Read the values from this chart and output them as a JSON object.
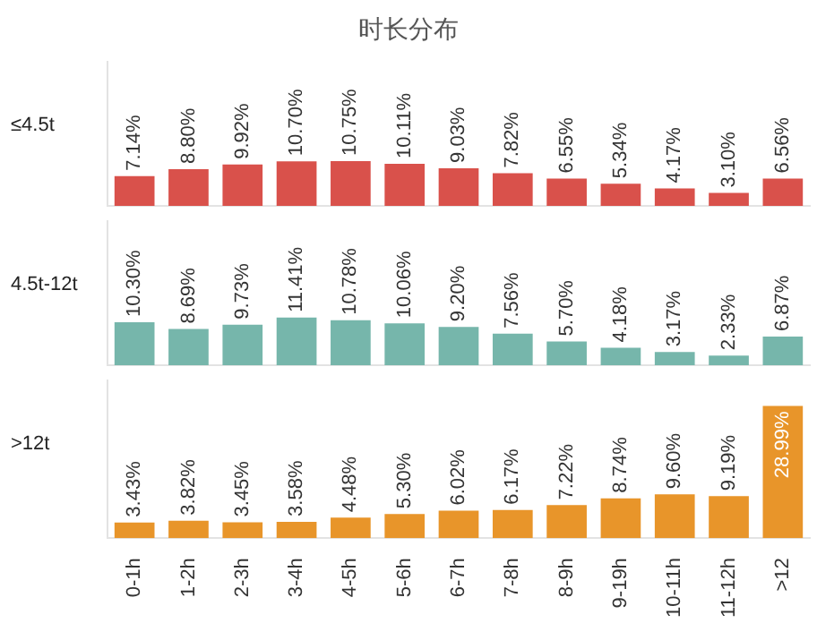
{
  "chart_data": [
    {
      "type": "bar",
      "title": "时长分布",
      "ylabel": "≤4.5t",
      "tick_labels": false,
      "categories": [
        null,
        null,
        null,
        null,
        null,
        null,
        null,
        null,
        null,
        null,
        null,
        null,
        null
      ],
      "series": [
        {
          "color": "#d9514b",
          "values": [
            7.14,
            8.8,
            9.92,
            10.7,
            10.75,
            10.11,
            9.03,
            7.82,
            6.55,
            5.34,
            4.17,
            3.1,
            6.56
          ],
          "value_labels": [
            "7.14%",
            "8.80%",
            "9.92%",
            "10.70%",
            "10.75%",
            "10.11%",
            "9.03%",
            "7.82%",
            "6.55%",
            "5.34%",
            "4.17%",
            "3.10%",
            "6.56%"
          ]
        }
      ]
    },
    {
      "type": "bar",
      "ylabel": "4.5t-12t",
      "tick_labels": false,
      "categories": [
        null,
        null,
        null,
        null,
        null,
        null,
        null,
        null,
        null,
        null,
        null,
        null,
        null
      ],
      "series": [
        {
          "color": "#76b6ab",
          "values": [
            10.3,
            8.69,
            9.73,
            11.41,
            10.78,
            10.06,
            9.2,
            7.56,
            5.7,
            4.18,
            3.17,
            2.33,
            6.87
          ],
          "value_labels": [
            "10.30%",
            "8.69%",
            "9.73%",
            "11.41%",
            "10.78%",
            "10.06%",
            "9.20%",
            "7.56%",
            "5.70%",
            "4.18%",
            "3.17%",
            "2.33%",
            "6.87%"
          ]
        }
      ]
    },
    {
      "type": "bar",
      "ylabel": ">12t",
      "tick_labels": "x",
      "categories": [
        "0-1h",
        "1-2h",
        "2-3h",
        "3-4h",
        "4-5h",
        "5-6h",
        "6-7h",
        "7-8h",
        "8-9h",
        "9-19h",
        "10-11h",
        "11-12h",
        ">12"
      ],
      "series": [
        {
          "color": "#e8952a",
          "values": [
            3.43,
            3.82,
            3.45,
            3.58,
            4.48,
            5.3,
            6.02,
            6.17,
            7.22,
            8.74,
            9.6,
            9.19,
            28.99
          ],
          "value_labels": [
            "3.43%",
            "3.82%",
            "3.45%",
            "3.58%",
            "4.48%",
            "5.30%",
            "6.02%",
            "6.17%",
            "7.22%",
            "8.74%",
            "9.60%",
            "9.19%",
            "28.99%"
          ]
        }
      ]
    }
  ]
}
